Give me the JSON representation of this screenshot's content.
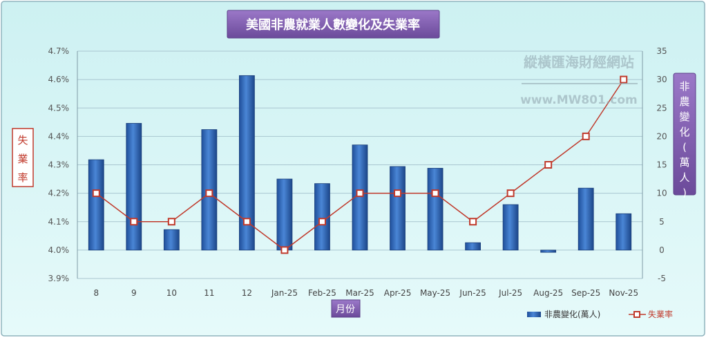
{
  "chart_data": {
    "type": "bar+line",
    "title": "美國非農就業人數變化及失業率",
    "xlabel": "月份",
    "ylabel_left": "失業率",
    "ylabel_right": "非農變化(萬人)",
    "categories": [
      "8",
      "9",
      "10",
      "11",
      "12",
      "Jan-25",
      "Feb-25",
      "Mar-25",
      "Apr-25",
      "May-25",
      "Jun-25",
      "Jul-25",
      "Aug-25",
      "Sep-25",
      "Nov-25"
    ],
    "series": [
      {
        "name": "非農變化(萬人)",
        "kind": "bar",
        "axis": "right",
        "color": "#2e62b4",
        "values": [
          15.9,
          22.3,
          3.6,
          21.2,
          30.7,
          12.5,
          11.7,
          18.5,
          14.7,
          14.4,
          1.3,
          8.0,
          -0.4,
          10.9,
          6.4
        ]
      },
      {
        "name": "失業率",
        "kind": "line",
        "axis": "left",
        "color": "#c0392b",
        "values": [
          4.2,
          4.1,
          4.1,
          4.2,
          4.1,
          4.0,
          4.1,
          4.2,
          4.2,
          4.2,
          4.1,
          4.2,
          4.3,
          4.4,
          4.6
        ]
      }
    ],
    "y_left": {
      "min": 3.9,
      "max": 4.7,
      "step": 0.1,
      "ticks": [
        "3.9%",
        "4.0%",
        "4.1%",
        "4.2%",
        "4.3%",
        "4.4%",
        "4.5%",
        "4.6%",
        "4.7%"
      ]
    },
    "y_right": {
      "min": -5,
      "max": 35,
      "step": 5,
      "ticks": [
        "-5",
        "0",
        "5",
        "10",
        "15",
        "20",
        "25",
        "30",
        "35"
      ]
    },
    "grid": true,
    "legend": {
      "placement": "bottom-right",
      "bar_label": "非農變化(萬人)",
      "line_label": "失業率"
    }
  },
  "watermark": {
    "line1": "縱橫匯海財經網站",
    "line2": "www.MW801.com"
  },
  "colors": {
    "background": "#d6f4f4",
    "title_box": "#7e5bae",
    "axis_label_box": "#8a63ba",
    "left_label_text": "#c0392b",
    "grid": "#a9c6d0"
  }
}
